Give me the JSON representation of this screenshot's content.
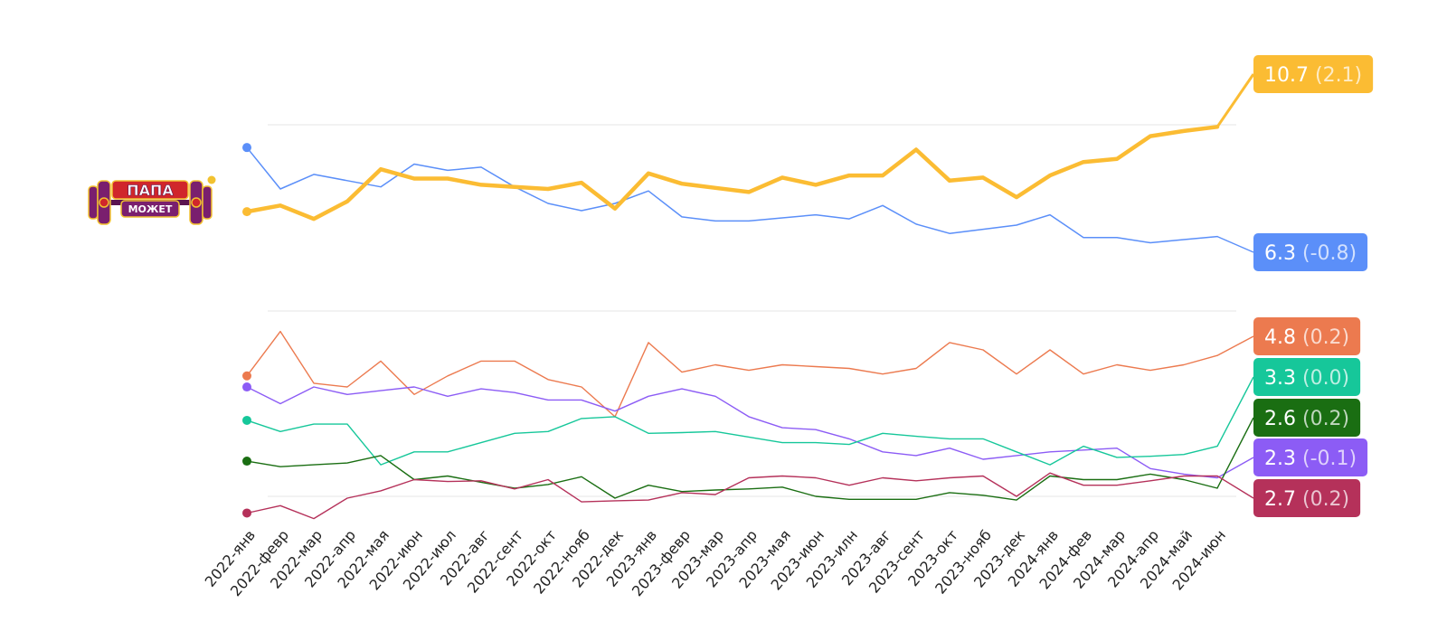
{
  "logo": {
    "line1": "ПАПА",
    "line2": "МОЖЕТ",
    "colors": {
      "purple": "#7a1f6e",
      "red": "#d0262b",
      "gold": "#f2c230",
      "dark": "#5a1450"
    }
  },
  "chart_data": {
    "type": "line",
    "categories": [
      "2022-янв",
      "2022-февр",
      "2022-мар",
      "2022-апр",
      "2022-мая",
      "2022-июн",
      "2022-июл",
      "2022-авг",
      "2022-сент",
      "2022-окт",
      "2022-нояб",
      "2022-дек",
      "2023-янв",
      "2023-февр",
      "2023-мар",
      "2023-апр",
      "2023-мая",
      "2023-июн",
      "2023-илн",
      "2023-авг",
      "2023-сент",
      "2023-окт",
      "2023-нояб",
      "2023-дек",
      "2024-янв",
      "2024-фев",
      "2024-мар",
      "2024-апр",
      "2024-май",
      "2024-июн"
    ],
    "panels": [
      {
        "id": "upper",
        "ylim": [
          4.5,
          13.5
        ],
        "grid": [
          0.0,
          1.0
        ]
      },
      {
        "id": "lower",
        "ylim": [
          1.0,
          6.0
        ],
        "grid": [
          0.0,
          1.0
        ]
      }
    ],
    "grid": true,
    "series": [
      {
        "panel": "upper",
        "color": "#fbbc33",
        "width": 4.5,
        "badge": {
          "value": "10.7",
          "delta": "(2.1)"
        },
        "values": [
          9.3,
          9.6,
          8.95,
          9.8,
          11.35,
          10.9,
          10.9,
          10.6,
          10.5,
          10.4,
          10.7,
          9.45,
          11.15,
          10.65,
          10.45,
          10.25,
          10.95,
          10.6,
          11.05,
          11.05,
          12.3,
          10.8,
          10.95,
          10.0,
          11.05,
          11.7,
          11.85,
          12.95,
          13.2,
          13.4
        ]
      },
      {
        "panel": "upper",
        "color": "#5b8ff9",
        "width": 1.5,
        "badge": {
          "value": "6.3",
          "delta": "(-0.8)"
        },
        "values": [
          12.4,
          10.4,
          11.1,
          10.8,
          10.5,
          11.6,
          11.3,
          11.45,
          10.5,
          9.7,
          9.35,
          9.7,
          10.3,
          9.05,
          8.85,
          8.85,
          9.0,
          9.15,
          8.95,
          9.6,
          8.7,
          8.25,
          8.45,
          8.65,
          9.15,
          8.05,
          8.05,
          7.8,
          7.95,
          8.1
        ]
      },
      {
        "panel": "lower",
        "color": "#ec7a4f",
        "width": 1.4,
        "badge": {
          "value": "4.8",
          "delta": "(0.2)"
        },
        "values": [
          4.25,
          5.45,
          4.05,
          3.95,
          4.65,
          3.75,
          4.25,
          4.65,
          4.65,
          4.15,
          3.95,
          3.15,
          5.15,
          4.35,
          4.55,
          4.4,
          4.55,
          4.5,
          4.45,
          4.3,
          4.45,
          5.15,
          4.95,
          4.3,
          4.95,
          4.3,
          4.55,
          4.4,
          4.55,
          4.8
        ]
      },
      {
        "panel": "lower",
        "color": "#8c5cf5",
        "width": 1.4,
        "badge": {
          "value": "2.3",
          "delta": "(-0.1)"
        },
        "values": [
          3.95,
          3.5,
          3.95,
          3.75,
          3.85,
          3.95,
          3.7,
          3.9,
          3.8,
          3.6,
          3.6,
          3.3,
          3.7,
          3.9,
          3.7,
          3.15,
          2.85,
          2.8,
          2.55,
          2.2,
          2.1,
          2.3,
          2.0,
          2.1,
          2.2,
          2.25,
          2.3,
          1.75,
          1.6,
          1.5
        ]
      },
      {
        "panel": "lower",
        "color": "#16c79a",
        "width": 1.4,
        "badge": {
          "value": "3.3",
          "delta": "(0.0)"
        },
        "values": [
          3.05,
          2.75,
          2.95,
          2.95,
          1.85,
          2.2,
          2.2,
          2.45,
          2.7,
          2.75,
          3.1,
          3.15,
          2.7,
          2.72,
          2.75,
          2.6,
          2.45,
          2.45,
          2.4,
          2.7,
          2.62,
          2.55,
          2.55,
          2.2,
          1.85,
          2.35,
          2.05,
          2.08,
          2.13,
          2.35
        ]
      },
      {
        "panel": "lower",
        "color": "#1a6e12",
        "width": 1.4,
        "badge": {
          "value": "2.6",
          "delta": "(0.2)"
        },
        "values": [
          1.95,
          1.8,
          1.85,
          1.9,
          2.1,
          1.45,
          1.55,
          1.38,
          1.22,
          1.32,
          1.53,
          0.95,
          1.3,
          1.13,
          1.17,
          1.2,
          1.25,
          1.0,
          0.92,
          0.92,
          0.92,
          1.1,
          1.03,
          0.9,
          1.55,
          1.45,
          1.45,
          1.6,
          1.45,
          1.22
        ]
      },
      {
        "panel": "lower",
        "color": "#b5315a",
        "width": 1.4,
        "badge": {
          "value": "2.7",
          "delta": "(0.2)"
        },
        "values": [
          0.55,
          0.75,
          0.4,
          0.95,
          1.15,
          1.45,
          1.4,
          1.42,
          1.2,
          1.45,
          0.85,
          0.88,
          0.9,
          1.1,
          1.05,
          1.5,
          1.55,
          1.5,
          1.3,
          1.5,
          1.42,
          1.5,
          1.55,
          1.0,
          1.63,
          1.3,
          1.3,
          1.42,
          1.55,
          1.55
        ]
      }
    ]
  }
}
